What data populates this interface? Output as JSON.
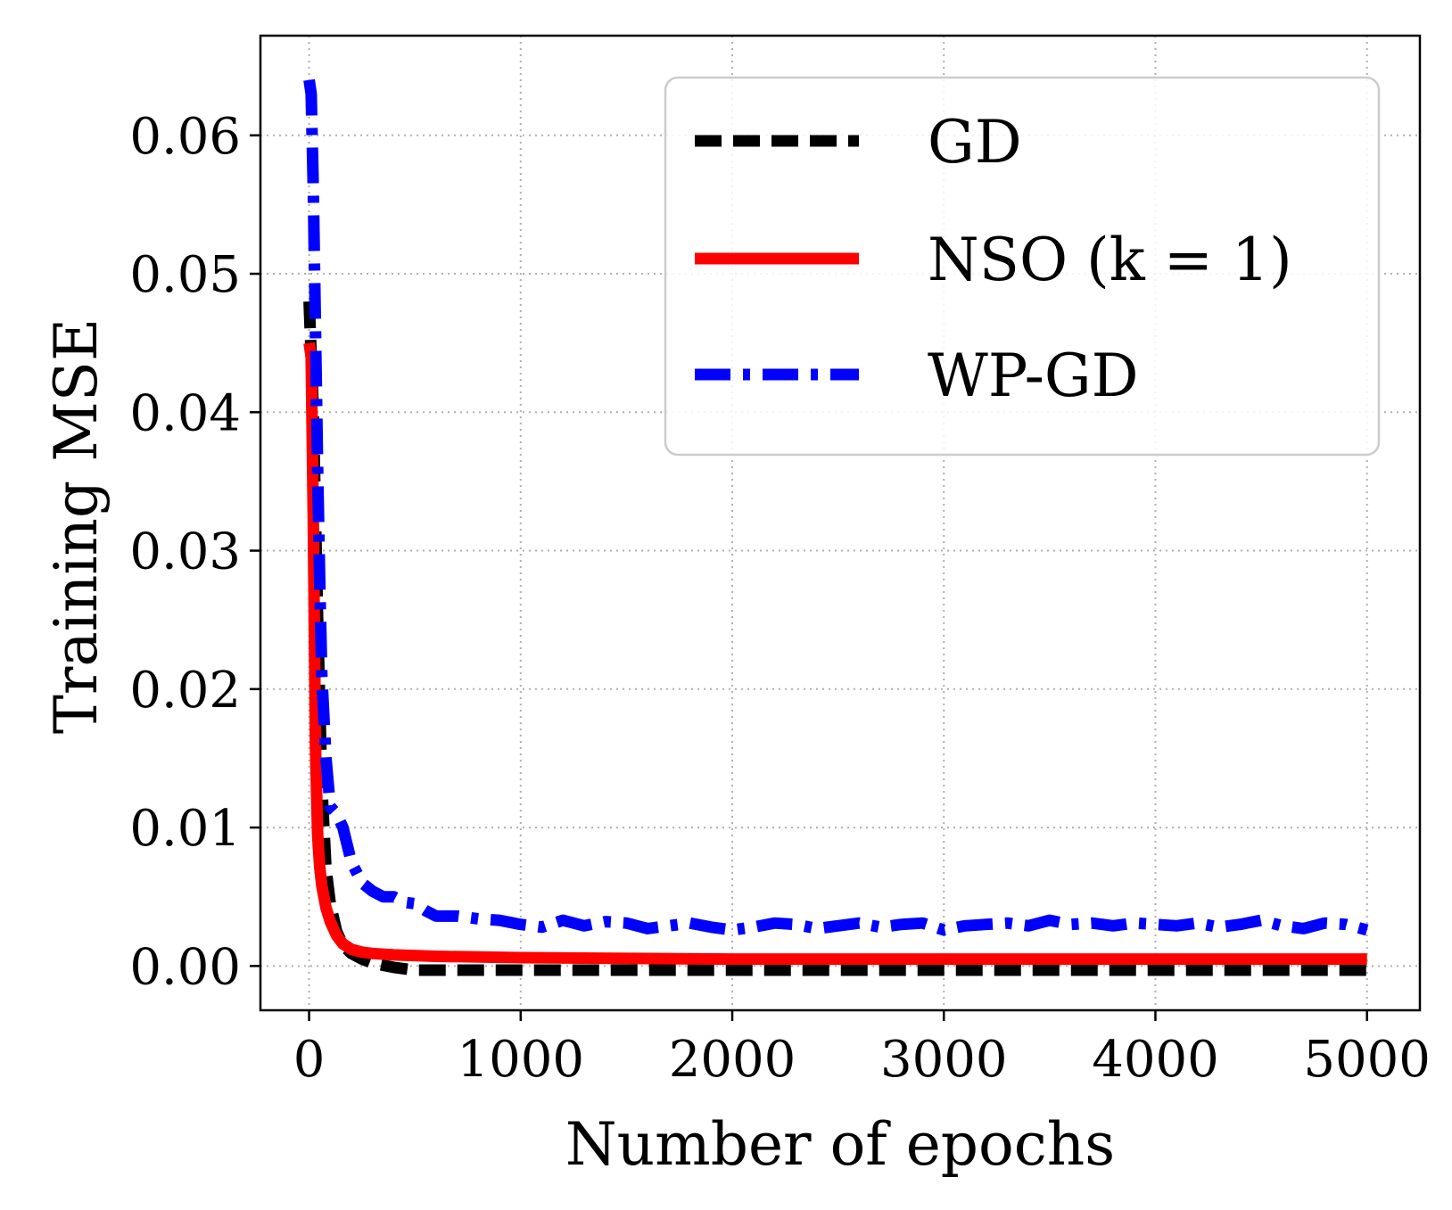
{
  "chart_data": {
    "type": "line",
    "title": "",
    "xlabel": "Number of epochs",
    "ylabel": "Training MSE",
    "xlim": [
      -230,
      5250
    ],
    "ylim": [
      -0.0032,
      0.0672
    ],
    "xticks": [
      0,
      1000,
      2000,
      3000,
      4000,
      5000
    ],
    "xtick_labels": [
      "0",
      "1000",
      "2000",
      "3000",
      "4000",
      "5000"
    ],
    "yticks": [
      0.0,
      0.01,
      0.02,
      0.03,
      0.04,
      0.05,
      0.06
    ],
    "ytick_labels": [
      "0.00",
      "0.01",
      "0.02",
      "0.03",
      "0.04",
      "0.05",
      "0.06"
    ],
    "grid": true,
    "legend_position": "top-right",
    "series": [
      {
        "name": "GD",
        "color": "#000000",
        "style": "dashed",
        "x": [
          0,
          20,
          40,
          60,
          80,
          100,
          130,
          160,
          200,
          250,
          300,
          400,
          500,
          700,
          1000,
          2000,
          3000,
          4000,
          5000
        ],
        "y": [
          0.048,
          0.04,
          0.025,
          0.013,
          0.007,
          0.0045,
          0.0025,
          0.0015,
          0.0009,
          0.0005,
          0.0002,
          -0.0001,
          -0.0003,
          -0.0003,
          -0.0003,
          -0.0003,
          -0.0003,
          -0.0003,
          -0.0003
        ]
      },
      {
        "name": "NSO (k = 1)",
        "color": "#ff0000",
        "style": "solid",
        "x": [
          0,
          10,
          20,
          30,
          40,
          50,
          60,
          80,
          100,
          130,
          160,
          200,
          250,
          300,
          400,
          600,
          1000,
          2000,
          3000,
          4000,
          5000
        ],
        "y": [
          0.045,
          0.044,
          0.032,
          0.016,
          0.0095,
          0.0072,
          0.0058,
          0.0042,
          0.0032,
          0.0022,
          0.0016,
          0.0012,
          0.001,
          0.0009,
          0.0008,
          0.0007,
          0.0006,
          0.0005,
          0.0005,
          0.0005,
          0.0005
        ]
      },
      {
        "name": "WP-GD",
        "color": "#0000ff",
        "style": "dashdot",
        "x": [
          0,
          10,
          20,
          30,
          40,
          50,
          60,
          80,
          100,
          130,
          160,
          200,
          250,
          300,
          350,
          400,
          450,
          500,
          550,
          600,
          700,
          800,
          900,
          1000,
          1100,
          1200,
          1300,
          1400,
          1500,
          1600,
          1700,
          1800,
          1900,
          2000,
          2100,
          2200,
          2300,
          2400,
          2500,
          2600,
          2700,
          2800,
          2900,
          3000,
          3100,
          3200,
          3300,
          3400,
          3500,
          3600,
          3700,
          3800,
          3900,
          4000,
          4100,
          4200,
          4300,
          4400,
          4500,
          4600,
          4700,
          4800,
          4900,
          5000
        ],
        "y": [
          0.064,
          0.063,
          0.056,
          0.046,
          0.036,
          0.028,
          0.021,
          0.015,
          0.0115,
          0.011,
          0.01,
          0.0075,
          0.006,
          0.0054,
          0.005,
          0.005,
          0.0046,
          0.0045,
          0.004,
          0.0036,
          0.0036,
          0.0034,
          0.0033,
          0.003,
          0.0028,
          0.0033,
          0.0029,
          0.0032,
          0.0031,
          0.0027,
          0.0029,
          0.0031,
          0.0028,
          0.0026,
          0.0028,
          0.0031,
          0.003,
          0.0027,
          0.0029,
          0.0031,
          0.0028,
          0.003,
          0.0031,
          0.0026,
          0.0029,
          0.003,
          0.0031,
          0.0029,
          0.0033,
          0.003,
          0.0031,
          0.0029,
          0.0031,
          0.003,
          0.0029,
          0.0031,
          0.0028,
          0.003,
          0.0033,
          0.0029,
          0.0027,
          0.0031,
          0.003,
          0.0026
        ]
      }
    ]
  }
}
